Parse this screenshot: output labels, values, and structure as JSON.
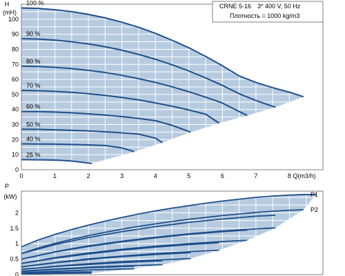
{
  "info": {
    "model": "CRNE 5-16",
    "supply": "3* 400 V, 50 Hz",
    "density": "Плотность = 1000 kg/m3"
  },
  "colors": {
    "band_fill": "#b7cbe0",
    "curve": "#1d4f8a",
    "grid": "#ffffff",
    "frame": "#7f7f7f",
    "text": "#000000"
  },
  "chart_data": [
    {
      "type": "line",
      "name": "head",
      "ylabel": "H",
      "yunit": "(mH)",
      "xlabel": "Q(m3/h)",
      "xlim": [
        0,
        9
      ],
      "ylim": [
        0,
        110
      ],
      "xticks": [
        0,
        1,
        2,
        3,
        4,
        5,
        6,
        7,
        8
      ],
      "yticks": [
        0,
        10,
        20,
        30,
        40,
        50,
        60,
        70,
        80,
        90,
        100
      ],
      "grid": true,
      "series": [
        {
          "name": "100 %",
          "x": [
            0,
            0.5,
            1,
            1.5,
            2,
            2.5,
            3,
            3.5,
            4,
            4.5,
            5,
            5.5,
            6,
            6.5,
            7,
            7.5,
            8,
            8.42
          ],
          "y": [
            107.5,
            107.2,
            106.3,
            105.0,
            103.2,
            100.9,
            98.0,
            94.6,
            90.6,
            86.0,
            81.0,
            75.3,
            69.1,
            62.3,
            58.0,
            54.5,
            51.5,
            48.5
          ]
        },
        {
          "name": "90 %",
          "x": [
            0,
            0.5,
            1,
            1.5,
            2,
            2.5,
            3,
            3.5,
            4,
            4.5,
            5,
            5.5,
            6,
            6.5,
            7,
            7.58
          ],
          "y": [
            87.0,
            86.8,
            86.1,
            85.0,
            83.6,
            81.7,
            79.4,
            76.6,
            73.4,
            69.7,
            65.6,
            61.0,
            56.0,
            50.5,
            46.0,
            41.5
          ]
        },
        {
          "name": "80 %",
          "x": [
            0,
            0.5,
            1,
            1.5,
            2,
            2.5,
            3,
            3.5,
            4,
            4.5,
            5,
            5.5,
            6,
            6.74
          ],
          "y": [
            68.8,
            68.6,
            68.0,
            67.2,
            66.0,
            64.6,
            62.7,
            60.5,
            58.0,
            55.1,
            51.8,
            48.2,
            44.3,
            36.0
          ]
        },
        {
          "name": "70 %",
          "x": [
            0,
            0.5,
            1,
            1.5,
            2,
            2.5,
            3,
            3.5,
            4,
            4.5,
            5,
            5.5,
            5.9
          ],
          "y": [
            52.7,
            52.5,
            52.1,
            51.4,
            50.5,
            49.4,
            48.0,
            46.4,
            44.4,
            42.2,
            39.7,
            36.9,
            31.0
          ]
        },
        {
          "name": "60 %",
          "x": [
            0,
            0.5,
            1,
            1.5,
            2,
            2.5,
            3,
            3.5,
            4,
            4.5,
            5.05
          ],
          "y": [
            38.7,
            38.6,
            38.3,
            37.8,
            37.1,
            36.3,
            35.3,
            34.1,
            32.6,
            29.5,
            25.0
          ]
        },
        {
          "name": "50 %",
          "x": [
            0,
            0.5,
            1,
            1.5,
            2,
            2.5,
            3,
            3.5,
            4,
            4.21
          ],
          "y": [
            26.9,
            26.8,
            26.5,
            26.2,
            25.8,
            25.2,
            24.5,
            23.7,
            21.0,
            18.0
          ]
        },
        {
          "name": "40 %",
          "x": [
            0,
            0.5,
            1,
            1.5,
            2,
            2.5,
            3,
            3.37
          ],
          "y": [
            17.2,
            17.1,
            17.0,
            16.8,
            16.5,
            16.1,
            14.5,
            12.0
          ]
        },
        {
          "name": "25 %",
          "x": [
            0,
            0.5,
            1,
            1.5,
            2.1
          ],
          "y": [
            6.7,
            6.6,
            6.4,
            5.8,
            4.2
          ]
        }
      ]
    },
    {
      "type": "line",
      "name": "power",
      "ylabel": "P",
      "yunit": "(kW)",
      "xlim": [
        0,
        9
      ],
      "ylim": [
        0,
        2.7
      ],
      "yticks": [
        0,
        0.5,
        1,
        1.5,
        2
      ],
      "yticklabels": [
        "0",
        "0.5",
        "1",
        "1.5",
        "2"
      ],
      "grid": true,
      "series": [
        {
          "name": "P1 100 %",
          "x": [
            0,
            0.5,
            1,
            1.5,
            2,
            2.5,
            3,
            3.5,
            4,
            4.5,
            5,
            5.5,
            6,
            6.5,
            7,
            7.5,
            8,
            8.42,
            8.5,
            8.8
          ],
          "y": [
            0.9,
            1.12,
            1.3,
            1.46,
            1.6,
            1.73,
            1.85,
            1.96,
            2.06,
            2.15,
            2.23,
            2.31,
            2.38,
            2.44,
            2.5,
            2.54,
            2.57,
            2.59,
            2.59,
            2.59
          ]
        },
        {
          "name": "P2 100 %",
          "x": [
            0,
            0.5,
            1,
            1.5,
            2,
            2.5,
            3,
            3.5,
            4,
            4.5,
            5,
            5.5,
            6,
            6.5,
            7,
            7.5,
            8,
            8.42
          ],
          "y": [
            0.68,
            0.86,
            1.01,
            1.14,
            1.26,
            1.37,
            1.47,
            1.56,
            1.64,
            1.72,
            1.79,
            1.85,
            1.91,
            1.96,
            2.01,
            2.05,
            2.08,
            2.1
          ]
        },
        {
          "name": "P1 90 %",
          "x": [
            0,
            1,
            2,
            3,
            4,
            5,
            6,
            7,
            7.58
          ],
          "y": [
            0.68,
            0.97,
            1.2,
            1.39,
            1.55,
            1.69,
            1.8,
            1.89,
            1.92
          ]
        },
        {
          "name": "P2 90 %",
          "x": [
            0,
            1,
            2,
            3,
            4,
            5,
            6,
            7,
            7.58
          ],
          "y": [
            0.5,
            0.74,
            0.93,
            1.08,
            1.21,
            1.32,
            1.41,
            1.48,
            1.51
          ]
        },
        {
          "name": "P1 80 %",
          "x": [
            0,
            1,
            2,
            3,
            4,
            5,
            6,
            6.74
          ],
          "y": [
            0.5,
            0.73,
            0.91,
            1.06,
            1.19,
            1.3,
            1.39,
            1.44
          ]
        },
        {
          "name": "P2 80 %",
          "x": [
            0,
            1,
            2,
            3,
            4,
            5,
            6,
            6.74
          ],
          "y": [
            0.36,
            0.55,
            0.7,
            0.82,
            0.92,
            1.0,
            1.07,
            1.11
          ]
        },
        {
          "name": "P1 70 %",
          "x": [
            0,
            1,
            2,
            3,
            4,
            5,
            5.9
          ],
          "y": [
            0.36,
            0.53,
            0.67,
            0.79,
            0.89,
            0.97,
            1.03
          ]
        },
        {
          "name": "P2 70 %",
          "x": [
            0,
            1,
            2,
            3,
            4,
            5,
            5.9
          ],
          "y": [
            0.25,
            0.39,
            0.51,
            0.6,
            0.68,
            0.74,
            0.79
          ]
        },
        {
          "name": "P1 60 %",
          "x": [
            0,
            1,
            2,
            3,
            4,
            5.05
          ],
          "y": [
            0.25,
            0.38,
            0.49,
            0.58,
            0.65,
            0.71
          ]
        },
        {
          "name": "P2 60 %",
          "x": [
            0,
            1,
            2,
            3,
            4,
            5.05
          ],
          "y": [
            0.17,
            0.27,
            0.35,
            0.42,
            0.47,
            0.52
          ]
        },
        {
          "name": "P1 50 %",
          "x": [
            0,
            1,
            2,
            3,
            4.21
          ],
          "y": [
            0.17,
            0.26,
            0.33,
            0.39,
            0.45
          ]
        },
        {
          "name": "P2 50 %",
          "x": [
            0,
            1,
            2,
            3,
            4.21
          ],
          "y": [
            0.11,
            0.18,
            0.24,
            0.28,
            0.32
          ]
        },
        {
          "name": "P1 40 %",
          "x": [
            0,
            1,
            2,
            3,
            3.37
          ],
          "y": [
            0.1,
            0.17,
            0.22,
            0.26,
            0.27
          ]
        },
        {
          "name": "P2 40 %",
          "x": [
            0,
            1,
            2,
            3,
            3.37
          ],
          "y": [
            0.06,
            0.11,
            0.15,
            0.18,
            0.19
          ]
        },
        {
          "name": "P1 25 %",
          "x": [
            0,
            1,
            2.1
          ],
          "y": [
            0.04,
            0.07,
            0.09
          ]
        },
        {
          "name": "P2 25 %",
          "x": [
            0,
            1,
            2.1
          ],
          "y": [
            0.02,
            0.04,
            0.05
          ]
        }
      ],
      "series_labels": [
        "P1",
        "P2"
      ]
    }
  ]
}
